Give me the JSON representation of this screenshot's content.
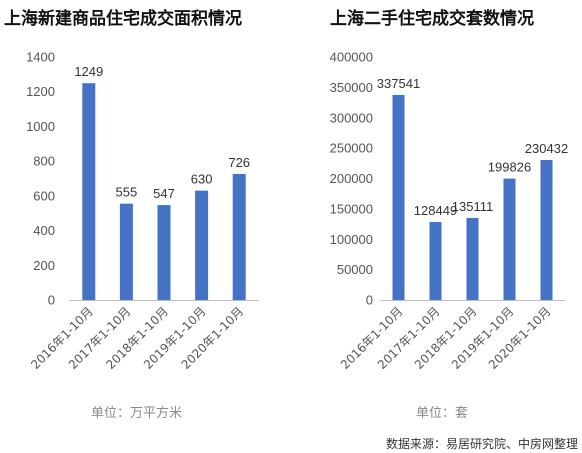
{
  "colors": {
    "bar": "#4472c4",
    "axis": "#bfbfbf",
    "text": "#555555"
  },
  "source": "数据来源：易居研究院、中房网整理",
  "chart_data": [
    {
      "type": "bar",
      "title": "上海新建商品住宅成交面积情况",
      "unit_label": "单位：万平方米",
      "categories": [
        "2016年1-10月",
        "2017年1-10月",
        "2018年1-10月",
        "2019年1-10月",
        "2020年1-10月"
      ],
      "values": [
        1249,
        555,
        547,
        630,
        726
      ],
      "ylim": [
        0,
        1400
      ],
      "yticks": [
        0,
        200,
        400,
        600,
        800,
        1000,
        1200,
        1400
      ],
      "grid": false,
      "legend": "none"
    },
    {
      "type": "bar",
      "title": "上海二手住宅成交套数情况",
      "unit_label": "单位：套",
      "categories": [
        "2016年1-10月",
        "2017年1-10月",
        "2018年1-10月",
        "2019年1-10月",
        "2020年1-10月"
      ],
      "values": [
        337541,
        128449,
        135111,
        199826,
        230432
      ],
      "ylim": [
        0,
        400000
      ],
      "yticks": [
        0,
        50000,
        100000,
        150000,
        200000,
        250000,
        300000,
        350000,
        400000
      ],
      "grid": false,
      "legend": "none"
    }
  ]
}
